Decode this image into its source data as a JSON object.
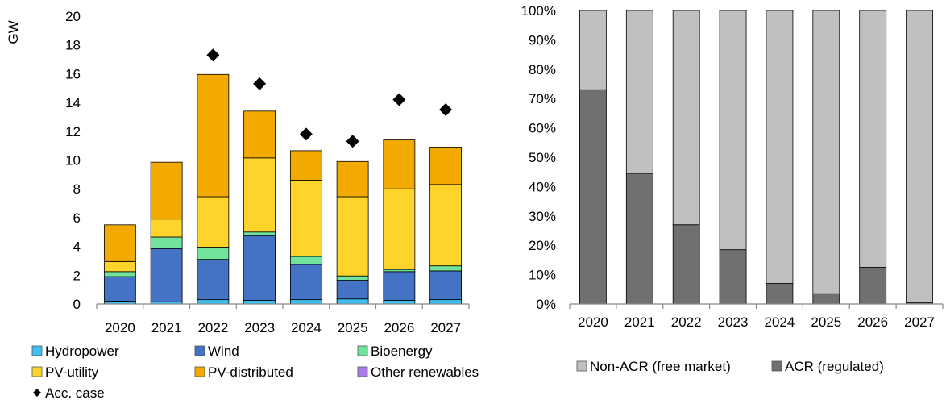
{
  "chart_data": [
    {
      "type": "bar",
      "stacked": true,
      "ylabel": "GW",
      "ylim": [
        0,
        20
      ],
      "yticks": [
        "0",
        "2",
        "4",
        "6",
        "8",
        "10",
        "12",
        "14",
        "16",
        "18",
        "20"
      ],
      "categories": [
        "2020",
        "2021",
        "2022",
        "2023",
        "2024",
        "2025",
        "2026",
        "2027"
      ],
      "series": [
        {
          "name": "Hydropower",
          "color": "#3FBFEF",
          "values": [
            0.2,
            0.15,
            0.3,
            0.25,
            0.3,
            0.35,
            0.25,
            0.3
          ]
        },
        {
          "name": "Wind",
          "color": "#4472C4",
          "values": [
            1.7,
            3.7,
            2.8,
            4.5,
            2.45,
            1.3,
            2.0,
            2.0
          ]
        },
        {
          "name": "Bioenergy",
          "color": "#72E39B",
          "values": [
            0.35,
            0.8,
            0.85,
            0.25,
            0.55,
            0.3,
            0.15,
            0.35
          ]
        },
        {
          "name": "PV-utility",
          "color": "#FFD42A",
          "values": [
            0.7,
            1.25,
            3.5,
            5.15,
            5.3,
            5.5,
            5.6,
            5.65
          ]
        },
        {
          "name": "PV-distributed",
          "color": "#F2A900",
          "values": [
            2.55,
            3.95,
            8.5,
            3.25,
            2.05,
            2.45,
            3.4,
            2.6
          ]
        },
        {
          "name": "Other renewables",
          "color": "#A97CE8",
          "values": [
            0,
            0,
            0,
            0,
            0,
            0,
            0,
            0
          ]
        }
      ],
      "markers": {
        "name": "Acc. case",
        "color": "#000000",
        "values": [
          null,
          null,
          17.3,
          15.3,
          11.8,
          11.3,
          14.2,
          13.5
        ]
      },
      "legend_position": "bottom",
      "grid": false
    },
    {
      "type": "bar",
      "stacked": true,
      "percent": true,
      "ylim": [
        0,
        100
      ],
      "yticks": [
        "0%",
        "10%",
        "20%",
        "30%",
        "40%",
        "50%",
        "60%",
        "70%",
        "80%",
        "90%",
        "100%"
      ],
      "categories": [
        "2020",
        "2021",
        "2022",
        "2023",
        "2024",
        "2025",
        "2026",
        "2027"
      ],
      "series": [
        {
          "name": "ACR (regulated)",
          "color": "#707070",
          "values": [
            73,
            44.5,
            27,
            18.5,
            7,
            3.5,
            12.5,
            0.5
          ]
        },
        {
          "name": "Non-ACR (free market)",
          "color": "#C0C0C0",
          "values": [
            27,
            55.5,
            73,
            81.5,
            93,
            96.5,
            87.5,
            99.5
          ]
        }
      ],
      "legend_order": [
        "Non-ACR (free market)",
        "ACR (regulated)"
      ],
      "legend_position": "bottom",
      "grid": false
    }
  ]
}
